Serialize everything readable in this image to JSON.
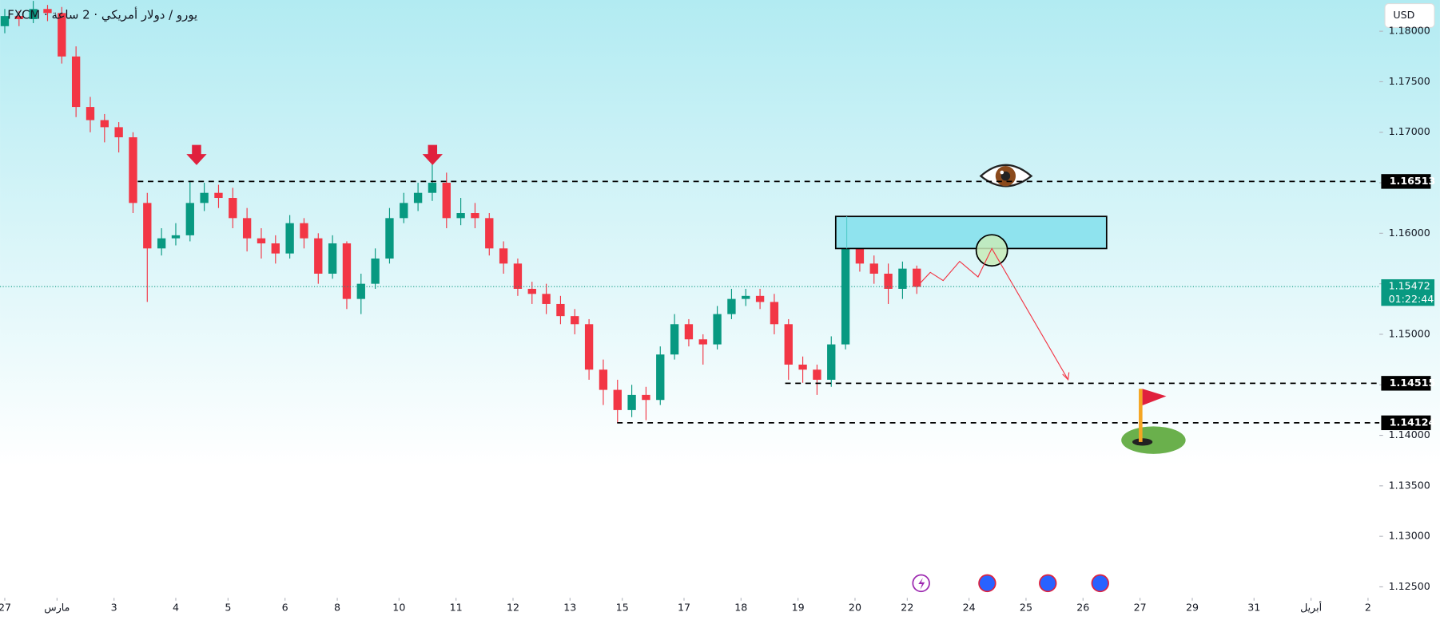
{
  "chart_data": {
    "type": "candlestick",
    "title": "FXCM · يورو / دولار أمريكي · 2 ساعة",
    "currency": "USD",
    "up_color": "#089981",
    "down_color": "#f23645",
    "x": [
      0,
      3,
      6,
      9,
      12,
      15,
      18,
      21,
      24,
      27,
      30,
      33,
      36,
      39,
      42,
      45,
      48,
      51,
      54,
      57,
      60,
      63,
      66,
      69,
      72,
      75,
      78,
      81,
      84,
      87,
      90,
      93,
      96,
      99,
      102,
      105,
      108,
      111,
      114,
      117,
      120,
      123,
      126,
      129,
      132,
      135,
      138,
      141,
      144,
      147,
      150,
      153,
      156,
      159,
      162,
      165,
      168,
      171,
      174,
      177,
      180,
      183,
      186,
      189,
      192
    ],
    "open": [
      1.1805,
      1.1815,
      1.1812,
      1.1822,
      1.1818,
      1.1775,
      1.1725,
      1.1712,
      1.1705,
      1.1695,
      1.163,
      1.1585,
      1.1595,
      1.1598,
      1.163,
      1.164,
      1.1635,
      1.1615,
      1.1595,
      1.159,
      1.158,
      1.161,
      1.1595,
      1.156,
      1.159,
      1.1535,
      1.155,
      1.1575,
      1.1615,
      1.163,
      1.164,
      1.165,
      1.1615,
      1.162,
      1.1615,
      1.1585,
      1.157,
      1.1545,
      1.154,
      1.153,
      1.1518,
      1.151,
      1.1465,
      1.1445,
      1.1425,
      1.144,
      1.1435,
      1.148,
      1.151,
      1.1495,
      1.149,
      1.152,
      1.1535,
      1.1538,
      1.1532,
      1.151,
      1.147,
      1.1465,
      1.1455,
      1.149,
      1.1585,
      1.157,
      1.156,
      1.1545,
      1.1565
    ],
    "high": [
      1.1822,
      1.182,
      1.183,
      1.1826,
      1.1824,
      1.1785,
      1.1735,
      1.1718,
      1.171,
      1.17,
      1.164,
      1.1605,
      1.161,
      1.1652,
      1.165,
      1.1648,
      1.1645,
      1.1625,
      1.1605,
      1.1598,
      1.1618,
      1.1615,
      1.16,
      1.1598,
      1.1592,
      1.156,
      1.1585,
      1.1625,
      1.164,
      1.165,
      1.167,
      1.166,
      1.1635,
      1.163,
      1.162,
      1.1592,
      1.1575,
      1.1552,
      1.155,
      1.1538,
      1.1525,
      1.1515,
      1.1475,
      1.1455,
      1.145,
      1.1448,
      1.1488,
      1.152,
      1.1515,
      1.15,
      1.1528,
      1.1545,
      1.1545,
      1.1545,
      1.154,
      1.1515,
      1.1478,
      1.147,
      1.1498,
      1.1592,
      1.1595,
      1.1578,
      1.157,
      1.1572,
      1.1568
    ],
    "low": [
      1.1798,
      1.1805,
      1.1808,
      1.181,
      1.1768,
      1.1715,
      1.17,
      1.169,
      1.168,
      1.162,
      1.1532,
      1.1578,
      1.1588,
      1.1592,
      1.1622,
      1.1625,
      1.1605,
      1.1582,
      1.1575,
      1.157,
      1.1575,
      1.1585,
      1.155,
      1.1555,
      1.1525,
      1.152,
      1.1545,
      1.157,
      1.161,
      1.1622,
      1.1632,
      1.1605,
      1.1608,
      1.1605,
      1.1578,
      1.156,
      1.1538,
      1.153,
      1.152,
      1.151,
      1.15,
      1.1455,
      1.143,
      1.1412,
      1.1418,
      1.1415,
      1.143,
      1.1475,
      1.1488,
      1.147,
      1.1485,
      1.1515,
      1.1528,
      1.1525,
      1.15,
      1.1455,
      1.1452,
      1.144,
      1.1448,
      1.1485,
      1.1562,
      1.155,
      1.153,
      1.1535,
      1.154
    ],
    "close": [
      1.1815,
      1.1812,
      1.1822,
      1.1818,
      1.1775,
      1.1725,
      1.1712,
      1.1705,
      1.1695,
      1.163,
      1.1585,
      1.1595,
      1.1598,
      1.163,
      1.164,
      1.1635,
      1.1615,
      1.1595,
      1.159,
      1.158,
      1.161,
      1.1595,
      1.156,
      1.159,
      1.1535,
      1.155,
      1.1575,
      1.1615,
      1.163,
      1.164,
      1.165,
      1.1615,
      1.162,
      1.1615,
      1.1585,
      1.157,
      1.1545,
      1.154,
      1.153,
      1.1518,
      1.151,
      1.1465,
      1.1445,
      1.1425,
      1.144,
      1.1435,
      1.148,
      1.151,
      1.1495,
      1.149,
      1.152,
      1.1535,
      1.1538,
      1.1532,
      1.151,
      1.147,
      1.1465,
      1.1455,
      1.149,
      1.1585,
      1.157,
      1.156,
      1.1545,
      1.1565,
      1.1547
    ],
    "xlim": [
      -1,
      289
    ],
    "xticks": [
      {
        "value": 0,
        "label": "27"
      },
      {
        "value": 11,
        "label": "مارس"
      },
      {
        "value": 23,
        "label": "3"
      },
      {
        "value": 36,
        "label": "4"
      },
      {
        "value": 47,
        "label": "5"
      },
      {
        "value": 59,
        "label": "6"
      },
      {
        "value": 70,
        "label": "8"
      },
      {
        "value": 83,
        "label": "10"
      },
      {
        "value": 95,
        "label": "11"
      },
      {
        "value": 107,
        "label": "12"
      },
      {
        "value": 119,
        "label": "13"
      },
      {
        "value": 130,
        "label": "15"
      },
      {
        "value": 143,
        "label": "17"
      },
      {
        "value": 155,
        "label": "18"
      },
      {
        "value": 167,
        "label": "19"
      },
      {
        "value": 179,
        "label": "20"
      },
      {
        "value": 190,
        "label": "22"
      },
      {
        "value": 203,
        "label": "24"
      },
      {
        "value": 215,
        "label": "25"
      },
      {
        "value": 227,
        "label": "26"
      },
      {
        "value": 239,
        "label": "27"
      },
      {
        "value": 250,
        "label": "29"
      },
      {
        "value": 263,
        "label": "31"
      },
      {
        "value": 275,
        "label": "أبريل"
      },
      {
        "value": 287,
        "label": "2"
      }
    ],
    "ylim": [
      1.12409,
      1.18309
    ],
    "yticks": [
      {
        "value": 1.18,
        "label": "1.18000"
      },
      {
        "value": 1.175,
        "label": "1.17500"
      },
      {
        "value": 1.17,
        "label": "1.17000"
      },
      {
        "value": 1.165,
        "label": "1.16500"
      },
      {
        "value": 1.16,
        "label": "1.16000"
      },
      {
        "value": 1.155,
        "label": "1.15500"
      },
      {
        "value": 1.15,
        "label": "1.15000"
      },
      {
        "value": 1.145,
        "label": "1.14500"
      },
      {
        "value": 1.14,
        "label": "1.14000"
      },
      {
        "value": 1.135,
        "label": "1.13500"
      },
      {
        "value": 1.13,
        "label": "1.13000"
      },
      {
        "value": 1.125,
        "label": "1.12500"
      }
    ],
    "levels": [
      1.16513,
      1.14515,
      1.14124
    ],
    "last_price": 1.15472,
    "countdown": "01:22:44"
  }
}
